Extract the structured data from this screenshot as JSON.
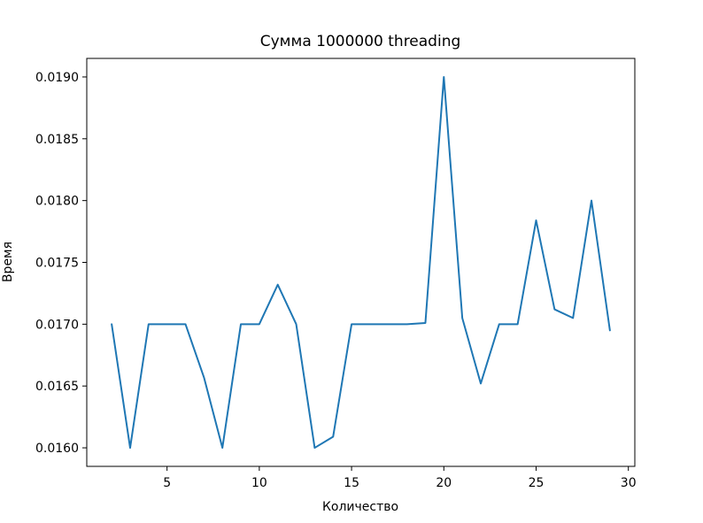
{
  "chart_data": {
    "type": "line",
    "title": "Сумма 1000000 threading",
    "xlabel": "Количество",
    "ylabel": "Время",
    "xlim": [
      0.65,
      30.35
    ],
    "ylim": [
      0.01585,
      0.01915
    ],
    "xticks": [
      5,
      10,
      15,
      20,
      25,
      30
    ],
    "yticks": [
      0.016,
      0.0165,
      0.017,
      0.0175,
      0.018,
      0.0185,
      0.019
    ],
    "ytick_labels": [
      "0.0160",
      "0.0165",
      "0.0170",
      "0.0175",
      "0.0180",
      "0.0185",
      "0.0190"
    ],
    "grid": false,
    "colors": {
      "line": "#1f77b4"
    },
    "series": [
      {
        "x": [
          2,
          3,
          4,
          5,
          6,
          7,
          8,
          9,
          10,
          11,
          12,
          13,
          14,
          15,
          16,
          17,
          18,
          19,
          20,
          21,
          22,
          23,
          24,
          25,
          26,
          27,
          28,
          29
        ],
        "values": [
          0.017,
          0.016,
          0.017,
          0.017,
          0.017,
          0.01657,
          0.016,
          0.017,
          0.017,
          0.01732,
          0.017,
          0.016,
          0.01609,
          0.017,
          0.017,
          0.017,
          0.017,
          0.01701,
          0.019,
          0.01705,
          0.01652,
          0.017,
          0.017,
          0.01784,
          0.01712,
          0.01705,
          0.018,
          0.01695
        ]
      }
    ]
  }
}
